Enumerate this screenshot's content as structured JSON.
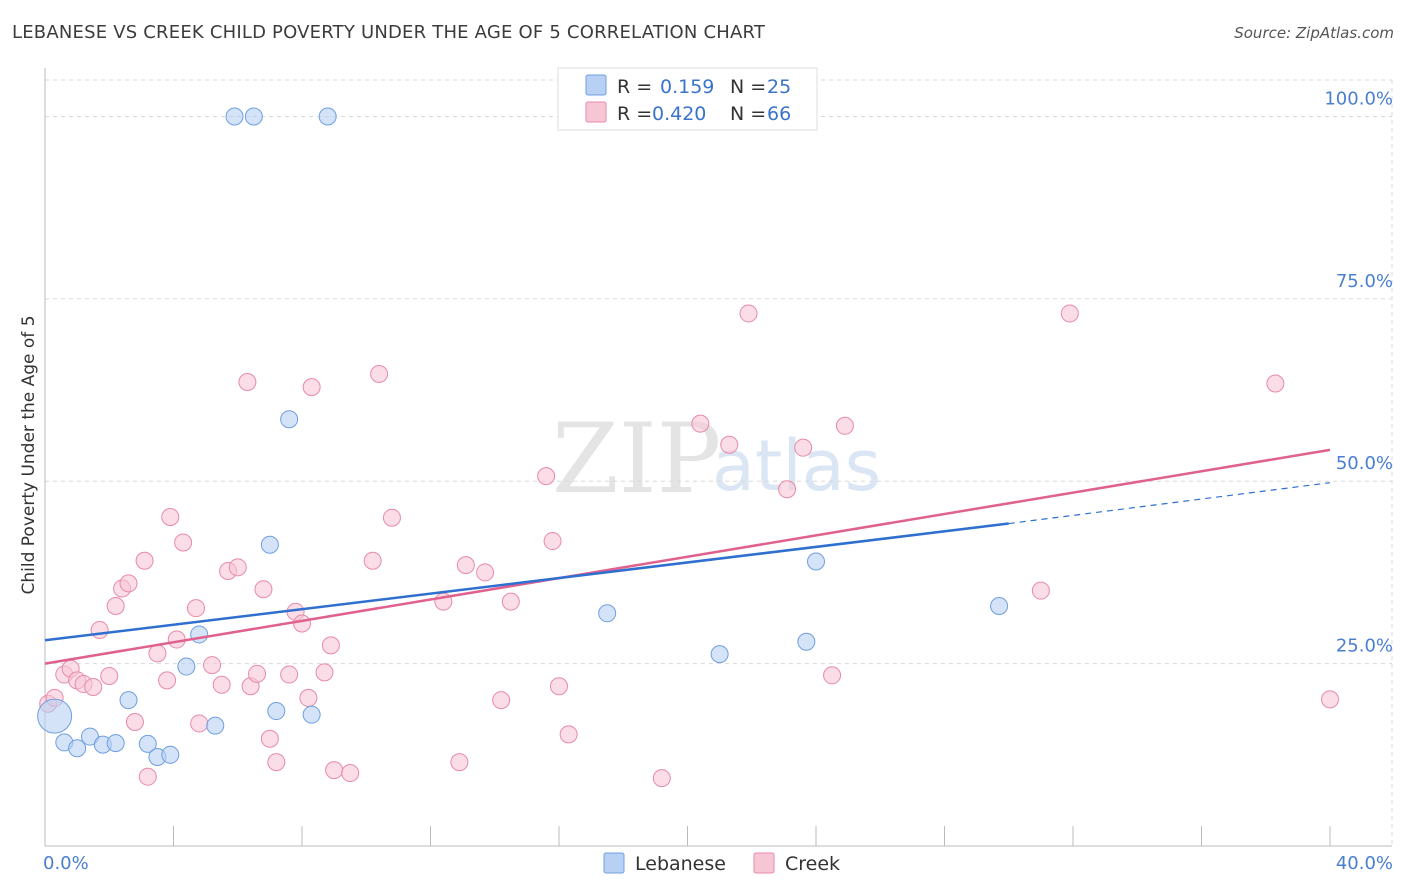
{
  "title": "LEBANESE VS CREEK CHILD POVERTY UNDER THE AGE OF 5 CORRELATION CHART",
  "source": "Source: ZipAtlas.com",
  "watermark": {
    "part1": "ZIP",
    "part2": "atlas"
  },
  "colors": {
    "lebanese_fill": "#b7d0f3",
    "lebanese_stroke": "#6f9fe0",
    "lebanese_line": "#2f6fd0",
    "creek_fill": "#f7c6d5",
    "creek_stroke": "#e88aa8",
    "creek_line": "#e0608e",
    "grid": "#d8d8d8",
    "axis_text": "#4a7fd0"
  },
  "legend": {
    "rows": [
      {
        "r_label": "R =",
        "r_value": "0.159",
        "n_label": "N =",
        "n_value": "25"
      },
      {
        "r_label": "R =",
        "r_value": "0.420",
        "n_label": "N =",
        "n_value": "66"
      }
    ]
  },
  "bottom_legend": {
    "items": [
      "Lebanese",
      "Creek"
    ]
  },
  "chart_data": {
    "type": "scatter",
    "title": "LEBANESE VS CREEK CHILD POVERTY UNDER THE AGE OF 5 CORRELATION CHART",
    "xlabel": "",
    "ylabel": "Child Poverty Under the Age of 5",
    "xlim": [
      0,
      40
    ],
    "ylim": [
      0,
      105
    ],
    "x_tick_labels": [
      "0.0%",
      "40.0%"
    ],
    "y_ticks": [
      25,
      50,
      75,
      100
    ],
    "y_tick_labels": [
      "25.0%",
      "50.0%",
      "75.0%",
      "100.0%"
    ],
    "grid": true,
    "legend_position": "top-center",
    "series": [
      {
        "name": "Lebanese",
        "points": [
          [
            0.3,
            17.8
          ],
          [
            0.6,
            14.2
          ],
          [
            1.0,
            13.4
          ],
          [
            1.4,
            15.0
          ],
          [
            1.8,
            13.9
          ],
          [
            2.2,
            14.1
          ],
          [
            2.6,
            20.0
          ],
          [
            3.2,
            14.0
          ],
          [
            3.5,
            12.2
          ],
          [
            3.9,
            12.5
          ],
          [
            4.4,
            24.6
          ],
          [
            4.8,
            29.0
          ],
          [
            5.3,
            16.5
          ],
          [
            5.9,
            100.0
          ],
          [
            6.5,
            100.0
          ],
          [
            7.0,
            41.3
          ],
          [
            7.2,
            18.5
          ],
          [
            7.6,
            58.5
          ],
          [
            8.8,
            100.0
          ],
          [
            8.3,
            18.0
          ],
          [
            17.5,
            31.9
          ],
          [
            21.0,
            26.3
          ],
          [
            23.7,
            28.0
          ],
          [
            24.0,
            39.0
          ],
          [
            29.7,
            32.9
          ]
        ],
        "trend": {
          "x0": 0,
          "y0": 28.2,
          "x1": 30.0,
          "y1": 44.2,
          "dashed_to_x": 40,
          "dashed_to_y": 49.8
        }
      },
      {
        "name": "Creek",
        "points": [
          [
            0.1,
            19.5
          ],
          [
            0.3,
            20.3
          ],
          [
            0.6,
            23.5
          ],
          [
            0.8,
            24.3
          ],
          [
            1.0,
            22.7
          ],
          [
            1.2,
            22.2
          ],
          [
            1.5,
            21.8
          ],
          [
            1.7,
            29.6
          ],
          [
            2.0,
            23.3
          ],
          [
            2.2,
            32.9
          ],
          [
            2.4,
            35.3
          ],
          [
            2.6,
            36.0
          ],
          [
            2.8,
            17.0
          ],
          [
            3.1,
            39.1
          ],
          [
            3.2,
            9.5
          ],
          [
            3.5,
            26.4
          ],
          [
            3.8,
            22.7
          ],
          [
            3.9,
            45.1
          ],
          [
            4.1,
            28.3
          ],
          [
            4.3,
            41.6
          ],
          [
            4.7,
            32.6
          ],
          [
            4.8,
            16.8
          ],
          [
            5.2,
            24.8
          ],
          [
            5.5,
            22.1
          ],
          [
            5.7,
            37.7
          ],
          [
            6.0,
            38.2
          ],
          [
            6.3,
            63.6
          ],
          [
            6.4,
            21.9
          ],
          [
            6.6,
            23.6
          ],
          [
            6.8,
            35.2
          ],
          [
            7.0,
            14.7
          ],
          [
            7.2,
            11.5
          ],
          [
            7.6,
            23.5
          ],
          [
            7.8,
            32.1
          ],
          [
            8.0,
            30.5
          ],
          [
            8.2,
            20.3
          ],
          [
            8.3,
            62.9
          ],
          [
            8.7,
            23.8
          ],
          [
            8.9,
            27.5
          ],
          [
            9.0,
            10.4
          ],
          [
            9.5,
            10.0
          ],
          [
            10.2,
            39.1
          ],
          [
            10.4,
            64.7
          ],
          [
            10.8,
            45.0
          ],
          [
            12.4,
            33.5
          ],
          [
            12.9,
            11.5
          ],
          [
            13.1,
            38.5
          ],
          [
            13.7,
            37.5
          ],
          [
            14.5,
            33.5
          ],
          [
            14.2,
            20.0
          ],
          [
            15.6,
            50.7
          ],
          [
            15.8,
            41.8
          ],
          [
            16.0,
            21.9
          ],
          [
            16.3,
            15.3
          ],
          [
            19.2,
            9.3
          ],
          [
            20.4,
            57.9
          ],
          [
            21.3,
            55.0
          ],
          [
            21.9,
            73.0
          ],
          [
            23.1,
            48.9
          ],
          [
            23.6,
            54.6
          ],
          [
            24.5,
            23.4
          ],
          [
            24.9,
            57.6
          ],
          [
            31.0,
            35.0
          ],
          [
            31.9,
            73.0
          ],
          [
            38.3,
            63.4
          ],
          [
            40.0,
            20.1
          ]
        ],
        "trend": {
          "x0": 0,
          "y0": 25.0,
          "x1": 40,
          "y1": 54.3
        }
      }
    ]
  }
}
